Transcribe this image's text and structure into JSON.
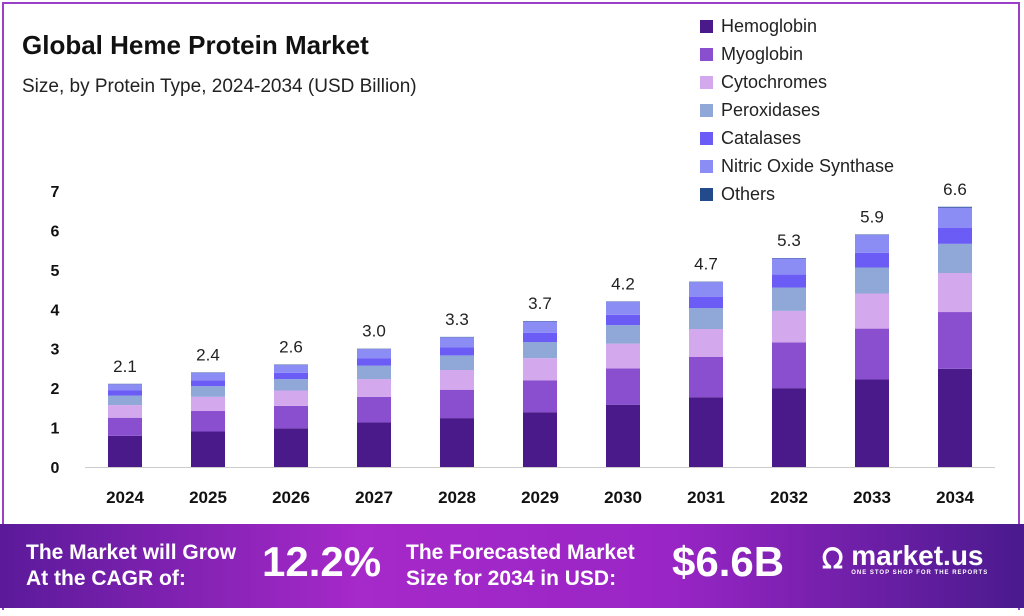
{
  "chart_data": {
    "type": "bar",
    "stacked": true,
    "title": "Global Heme Protein Market",
    "subtitle": "Size, by Protein Type, 2024-2034 (USD Billion)",
    "categories": [
      "2024",
      "2025",
      "2026",
      "2027",
      "2028",
      "2029",
      "2030",
      "2031",
      "2032",
      "2033",
      "2034"
    ],
    "totals": [
      "2.1",
      "2.4",
      "2.6",
      "3.0",
      "3.3",
      "3.7",
      "4.2",
      "4.7",
      "5.3",
      "5.9",
      "6.6"
    ],
    "ylim": [
      0,
      7
    ],
    "yticks": [
      "0",
      "1",
      "2",
      "3",
      "4",
      "5",
      "6",
      "7"
    ],
    "grid": false,
    "legend_position": "top-right",
    "series": [
      {
        "name": "Hemoglobin",
        "color": "#4a1a8a",
        "values": [
          0.79,
          0.9,
          0.98,
          1.13,
          1.24,
          1.39,
          1.58,
          1.77,
          2.0,
          2.22,
          2.49
        ]
      },
      {
        "name": "Myoglobin",
        "color": "#8a4fcf",
        "values": [
          0.46,
          0.52,
          0.57,
          0.65,
          0.72,
          0.81,
          0.92,
          1.02,
          1.16,
          1.29,
          1.44
        ]
      },
      {
        "name": "Cytochromes",
        "color": "#d4a8ec",
        "values": [
          0.32,
          0.36,
          0.39,
          0.45,
          0.5,
          0.56,
          0.63,
          0.71,
          0.8,
          0.89,
          0.99
        ]
      },
      {
        "name": "Peroxidases",
        "color": "#8fa8d8",
        "values": [
          0.24,
          0.27,
          0.29,
          0.34,
          0.37,
          0.41,
          0.47,
          0.53,
          0.59,
          0.66,
          0.74
        ]
      },
      {
        "name": "Catalases",
        "color": "#6a5cf5",
        "values": [
          0.13,
          0.15,
          0.16,
          0.19,
          0.2,
          0.23,
          0.26,
          0.29,
          0.33,
          0.37,
          0.41
        ]
      },
      {
        "name": "Nitric Oxide Synthase",
        "color": "#8c8cf5",
        "values": [
          0.16,
          0.19,
          0.2,
          0.23,
          0.26,
          0.29,
          0.33,
          0.37,
          0.41,
          0.46,
          0.51
        ]
      },
      {
        "name": "Others",
        "color": "#234a8a",
        "values": [
          0.01,
          0.01,
          0.01,
          0.01,
          0.01,
          0.01,
          0.01,
          0.01,
          0.01,
          0.01,
          0.02
        ]
      }
    ]
  },
  "banner": {
    "cagr_label_1": "The Market will Grow",
    "cagr_label_2": "At the CAGR of:",
    "cagr_value": "12.2%",
    "forecast_label_1": "The Forecasted Market",
    "forecast_label_2": "Size for 2034 in USD:",
    "forecast_value": "$6.6B",
    "brand": "market.us",
    "brand_tagline": "ONE STOP SHOP FOR THE REPORTS"
  }
}
